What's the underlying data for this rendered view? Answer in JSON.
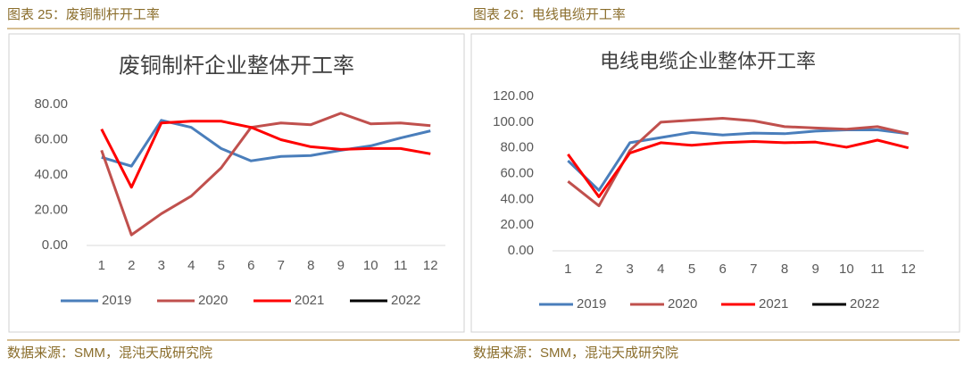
{
  "captions": [
    "图表 25：废铜制杆开工率",
    "图表 26：电线电缆开工率"
  ],
  "sources": [
    "数据来源：SMM，混沌天成研究院",
    "数据来源：SMM，混沌天成研究院"
  ],
  "chart_data": [
    {
      "type": "line",
      "title": "废铜制杆企业整体开工率",
      "categories": [
        "1",
        "2",
        "3",
        "4",
        "5",
        "6",
        "7",
        "8",
        "9",
        "10",
        "11",
        "12"
      ],
      "ylim": [
        0,
        80
      ],
      "yticks": [
        {
          "value": 0,
          "label": "0.00"
        },
        {
          "value": 20,
          "label": "20.00"
        },
        {
          "value": 40,
          "label": "40.00"
        },
        {
          "value": 60,
          "label": "60.00"
        },
        {
          "value": 80,
          "label": "80.00"
        }
      ],
      "grid": false,
      "series": [
        {
          "name": "2019",
          "color": "#4a7ebb",
          "values": [
            50,
            45,
            71,
            67,
            55,
            48,
            50.5,
            51,
            54,
            56.5,
            61,
            65
          ]
        },
        {
          "name": "2020",
          "color": "#c0504d",
          "values": [
            54,
            6,
            18,
            28,
            44,
            67,
            69.5,
            68.5,
            75,
            69,
            69.5,
            68
          ]
        },
        {
          "name": "2021",
          "color": "#ff0000",
          "values": [
            66,
            33,
            69.5,
            70.5,
            70.5,
            67,
            60,
            56,
            54.5,
            55,
            55,
            52
          ]
        },
        {
          "name": "2022",
          "color": "#000000",
          "values": [
            null,
            null,
            null,
            null,
            null,
            null,
            null,
            null,
            null,
            null,
            null,
            null
          ]
        }
      ]
    },
    {
      "type": "line",
      "title": "电线电缆企业整体开工率",
      "categories": [
        "1",
        "2",
        "3",
        "4",
        "5",
        "6",
        "7",
        "8",
        "9",
        "10",
        "11",
        "12"
      ],
      "ylim": [
        0,
        120
      ],
      "yticks": [
        {
          "value": 0,
          "label": "0.00"
        },
        {
          "value": 20,
          "label": "20.00"
        },
        {
          "value": 40,
          "label": "40.00"
        },
        {
          "value": 60,
          "label": "60.00"
        },
        {
          "value": 80,
          "label": "80.00"
        },
        {
          "value": 100,
          "label": "100.00"
        },
        {
          "value": 120,
          "label": "120.00"
        }
      ],
      "grid": false,
      "series": [
        {
          "name": "2019",
          "color": "#4a7ebb",
          "values": [
            70,
            47,
            84,
            88,
            92,
            90,
            91.5,
            91,
            93,
            94,
            94,
            91
          ]
        },
        {
          "name": "2020",
          "color": "#c0504d",
          "values": [
            54,
            35,
            78,
            100,
            101.5,
            103,
            101,
            96.5,
            95.5,
            94.5,
            96.5,
            91
          ]
        },
        {
          "name": "2021",
          "color": "#ff0000",
          "values": [
            75,
            42,
            76,
            84,
            82,
            84,
            85,
            84,
            84.5,
            80.5,
            86,
            80
          ]
        },
        {
          "name": "2022",
          "color": "#000000",
          "values": [
            null,
            null,
            null,
            null,
            null,
            null,
            null,
            null,
            null,
            null,
            null,
            null
          ]
        }
      ]
    }
  ]
}
